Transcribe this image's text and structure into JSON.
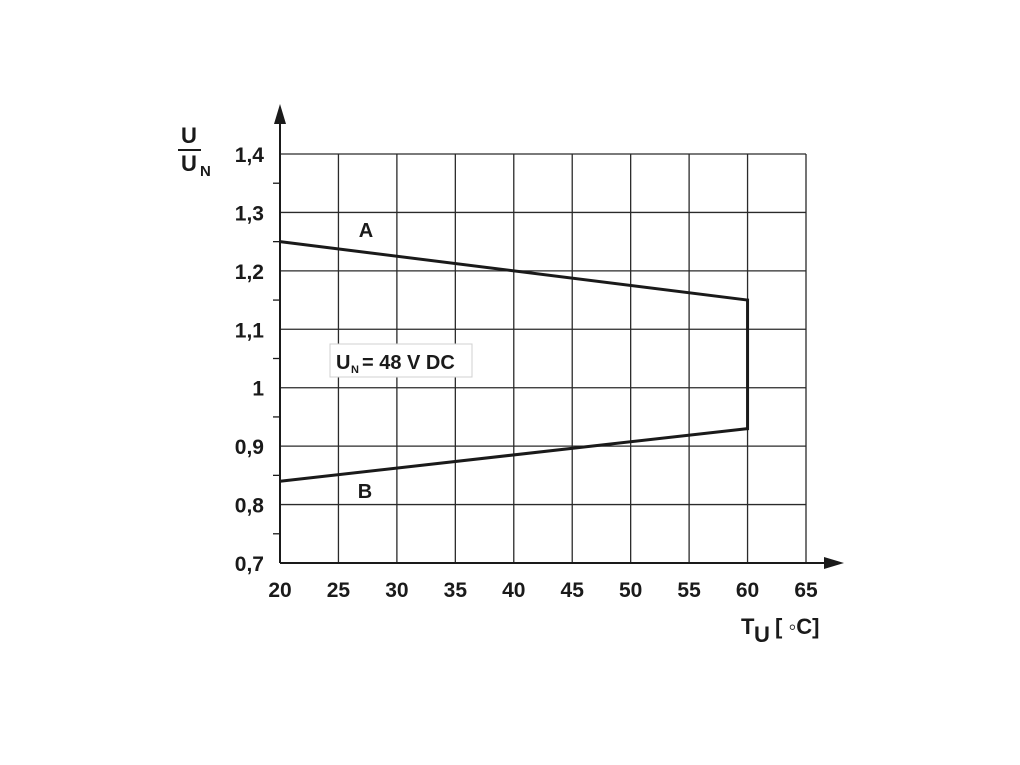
{
  "chart_data": {
    "type": "line",
    "xlabel": {
      "main": "T",
      "sub": "U",
      "unit": "[ ◦C]"
    },
    "ylabel": {
      "numerator": "U",
      "denominator": "U",
      "denominator_sub": "N"
    },
    "x_ticks": [
      "20",
      "25",
      "30",
      "35",
      "40",
      "45",
      "50",
      "55",
      "60",
      "65"
    ],
    "y_ticks": [
      "0,7",
      "0,8",
      "0,9",
      "1",
      "1,1",
      "1,2",
      "1,3",
      "1,4"
    ],
    "xlim": [
      20,
      65
    ],
    "ylim": [
      0.7,
      1.4
    ],
    "grid": true,
    "annotation": {
      "prefix": "U",
      "sub": "N",
      "text": "= 48 V DC"
    },
    "series": [
      {
        "name": "A",
        "x": [
          20,
          60
        ],
        "y": [
          1.25,
          1.15
        ]
      },
      {
        "name": "B",
        "x": [
          20,
          60
        ],
        "y": [
          0.84,
          0.93
        ]
      }
    ],
    "connector": {
      "x": [
        60,
        60
      ],
      "y": [
        1.15,
        0.93
      ]
    }
  }
}
